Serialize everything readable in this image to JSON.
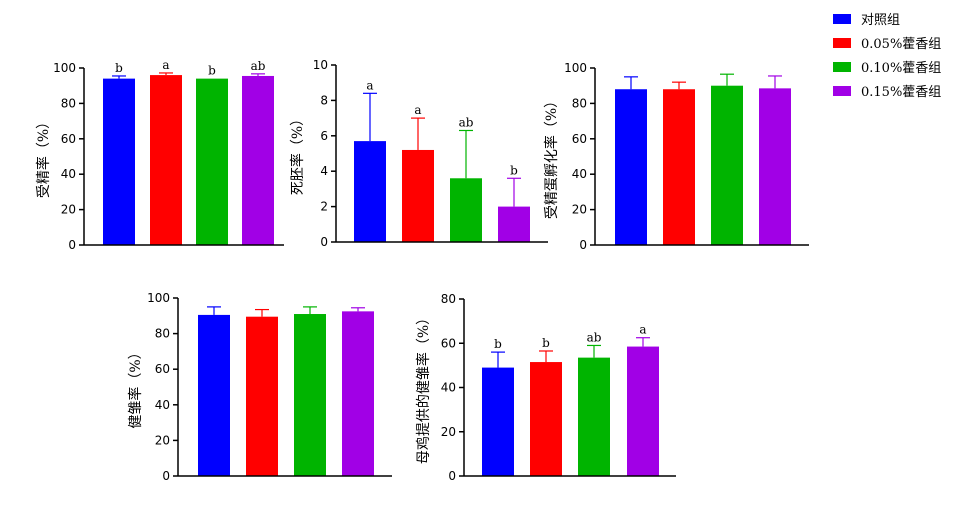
{
  "legend": {
    "position": "top-right",
    "entries": [
      {
        "label": "对照组",
        "color": "#0000ff"
      },
      {
        "label": "0.05%藿香组",
        "color": "#ff0000"
      },
      {
        "label": "0.10%藿香组",
        "color": "#00b400"
      },
      {
        "label": "0.15%藿香组",
        "color": "#a100e6"
      }
    ]
  },
  "chart_data": [
    {
      "type": "bar",
      "ylabel": "受精率（%）",
      "ylim": [
        0,
        100
      ],
      "yticks": [
        0,
        20,
        40,
        60,
        80,
        100
      ],
      "values": [
        94,
        96,
        94,
        95.5
      ],
      "errors": [
        1.5,
        1.2,
        0,
        1.2
      ],
      "labels": [
        "b",
        "a",
        "b",
        "ab"
      ],
      "colors": [
        "#0000ff",
        "#ff0000",
        "#00b400",
        "#a100e6"
      ]
    },
    {
      "type": "bar",
      "ylabel": "死胚率（%）",
      "ylim": [
        0,
        10
      ],
      "yticks": [
        0,
        2,
        4,
        6,
        8,
        10
      ],
      "values": [
        5.7,
        5.2,
        3.6,
        2.0
      ],
      "errors": [
        2.7,
        1.8,
        2.7,
        1.6
      ],
      "labels": [
        "a",
        "a",
        "ab",
        "b"
      ],
      "colors": [
        "#0000ff",
        "#ff0000",
        "#00b400",
        "#a100e6"
      ]
    },
    {
      "type": "bar",
      "ylabel": "受精蛋孵化率（%）",
      "ylim": [
        0,
        100
      ],
      "yticks": [
        0,
        20,
        40,
        60,
        80,
        100
      ],
      "values": [
        88,
        88,
        90,
        88.5
      ],
      "errors": [
        7,
        4,
        6.5,
        7
      ],
      "labels": [
        "",
        "",
        "",
        ""
      ],
      "colors": [
        "#0000ff",
        "#ff0000",
        "#00b400",
        "#a100e6"
      ]
    },
    {
      "type": "bar",
      "ylabel": "健雏率（%）",
      "ylim": [
        0,
        100
      ],
      "yticks": [
        0,
        20,
        40,
        60,
        80,
        100
      ],
      "values": [
        90.5,
        89.5,
        91,
        92.5
      ],
      "errors": [
        4.5,
        4,
        4,
        2
      ],
      "labels": [
        "",
        "",
        "",
        ""
      ],
      "colors": [
        "#0000ff",
        "#ff0000",
        "#00b400",
        "#a100e6"
      ]
    },
    {
      "type": "bar",
      "ylabel": "母鸡提供的健雏率（%）",
      "ylim": [
        0,
        80
      ],
      "yticks": [
        0,
        20,
        40,
        60,
        80
      ],
      "values": [
        49,
        51.5,
        53.5,
        58.5
      ],
      "errors": [
        7,
        5,
        5.5,
        4
      ],
      "labels": [
        "b",
        "b",
        "ab",
        "a"
      ],
      "colors": [
        "#0000ff",
        "#ff0000",
        "#00b400",
        "#a100e6"
      ]
    }
  ]
}
